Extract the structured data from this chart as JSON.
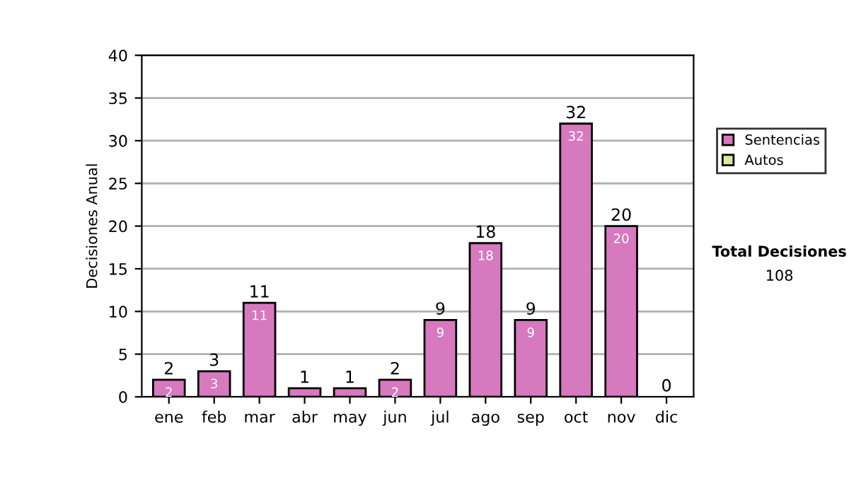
{
  "chart_data": {
    "type": "bar",
    "stacked": true,
    "ylabel": "Decisiones Anual",
    "categories": [
      "ene",
      "feb",
      "mar",
      "abr",
      "may",
      "jun",
      "jul",
      "ago",
      "sep",
      "oct",
      "nov",
      "dic"
    ],
    "series": [
      {
        "name": "Sentencias",
        "color": "#d779bf",
        "values": [
          2,
          3,
          11,
          1,
          1,
          2,
          9,
          18,
          9,
          32,
          20,
          0
        ],
        "value_labels": [
          "2",
          "3",
          "11",
          null,
          null,
          "2",
          "9",
          "18",
          "9",
          "32",
          "20",
          null
        ]
      },
      {
        "name": "Autos",
        "color": "#d6eba0",
        "values": [
          0,
          0,
          0,
          0,
          0,
          0,
          0,
          0,
          0,
          0,
          0,
          0
        ]
      }
    ],
    "totals": [
      "2",
      "3",
      "11",
      "1",
      "1",
      "2",
      "9",
      "18",
      "9",
      "32",
      "20",
      "0"
    ],
    "ylim": [
      0,
      40
    ],
    "yticks": [
      0,
      5,
      10,
      15,
      20,
      25,
      30,
      35,
      40
    ],
    "grid": "y",
    "legend": "right",
    "annotations": [
      "Total Decisiones",
      "108"
    ]
  }
}
